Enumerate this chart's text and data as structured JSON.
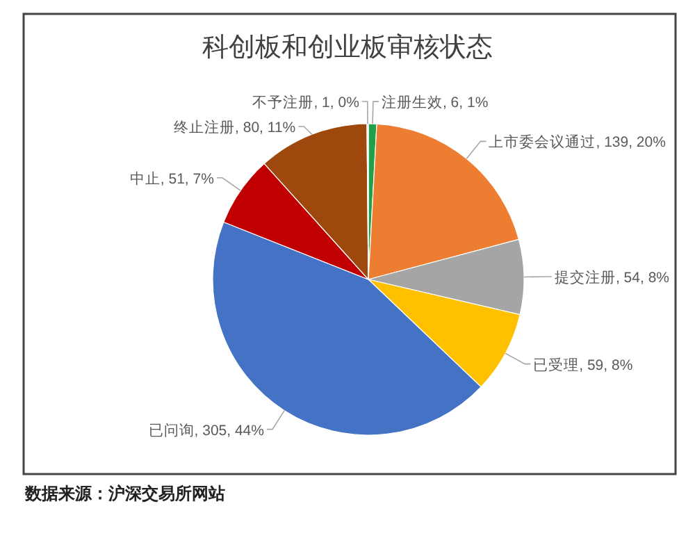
{
  "chart_data": {
    "type": "pie",
    "title": "科创板和创业板审核状态",
    "categories": [
      "注册生效",
      "上市委会议通过",
      "提交注册",
      "已受理",
      "已问询",
      "中止",
      "终止注册",
      "不予注册"
    ],
    "values": [
      6,
      139,
      54,
      59,
      305,
      51,
      80,
      1
    ],
    "value_labels": [
      "6, 1%",
      "139, 20%",
      "54, 8%",
      "59, 8%",
      "305, 44%",
      "51, 7%",
      "80, 11%",
      "1, 0%"
    ],
    "colors": [
      "#21a04a",
      "#ed7d31",
      "#a5a5a5",
      "#ffc000",
      "#4472c4",
      "#c00000",
      "#9e480e",
      "#dbe6f2"
    ],
    "annotations": [
      "数据来源：沪深交易所网站"
    ]
  }
}
